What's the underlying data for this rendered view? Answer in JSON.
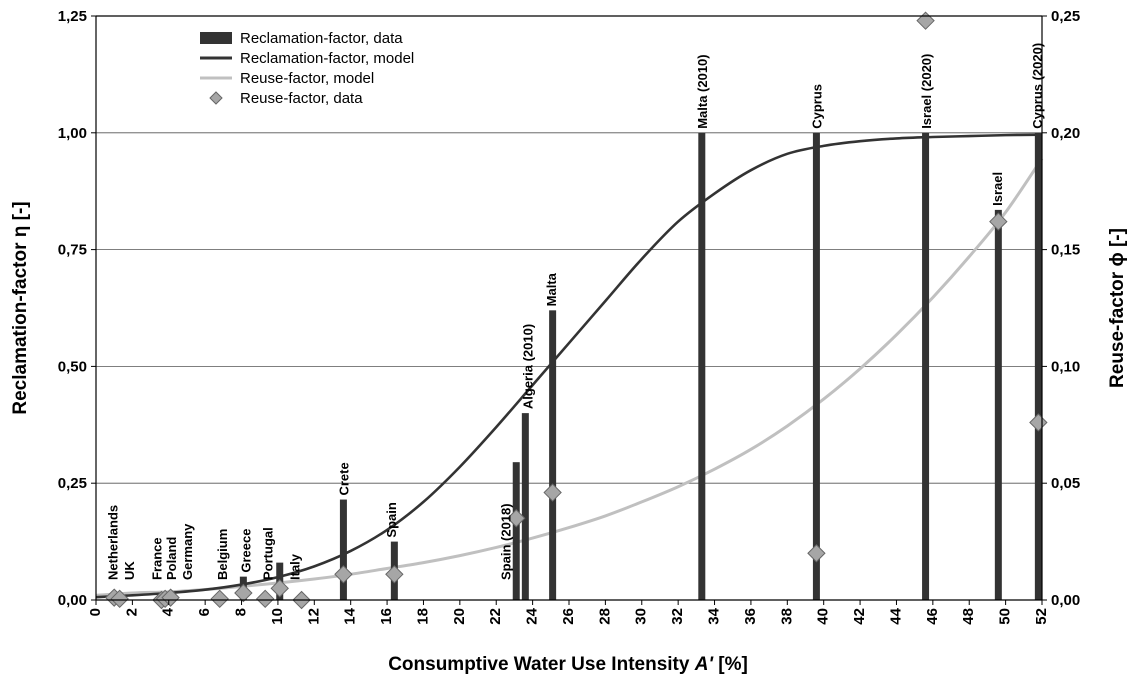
{
  "chart_data": {
    "type": "bar",
    "xlabel_prefix": "Consumptive Water Use Intensity ",
    "xlabel_var": "A'",
    "xlabel_suffix": " [%]",
    "ylabel_left": "Reclamation-factor η [-]",
    "ylabel_right": "Reuse-factor ϕ [-]",
    "xlim": [
      0,
      52
    ],
    "ylim_left": [
      0,
      1.25
    ],
    "ylim_right": [
      0,
      0.25
    ],
    "x_ticks": [
      "0",
      "2",
      "4",
      "6",
      "8",
      "10",
      "12",
      "14",
      "16",
      "18",
      "20",
      "22",
      "24",
      "26",
      "28",
      "30",
      "32",
      "34",
      "36",
      "38",
      "40",
      "42",
      "44",
      "46",
      "48",
      "50",
      "52"
    ],
    "x_tick_values": [
      0,
      2,
      4,
      6,
      8,
      10,
      12,
      14,
      16,
      18,
      20,
      22,
      24,
      26,
      28,
      30,
      32,
      34,
      36,
      38,
      40,
      42,
      44,
      46,
      48,
      50,
      52
    ],
    "y_ticks_left": [
      "0,00",
      "0,25",
      "0,50",
      "0,75",
      "1,00",
      "1,25"
    ],
    "y_tick_values_left": [
      0,
      0.25,
      0.5,
      0.75,
      1.0,
      1.25
    ],
    "y_ticks_right": [
      "0,00",
      "0,05",
      "0,10",
      "0,15",
      "0,20",
      "0,25"
    ],
    "y_tick_values_right": [
      0,
      0.05,
      0.1,
      0.15,
      0.2,
      0.25
    ],
    "grid": "horizontal",
    "legend_position": "top-left",
    "legend": [
      {
        "label": "Reclamation-factor, data",
        "symbol": "bar",
        "color": "#333333"
      },
      {
        "label": "Reclamation-factor, model",
        "symbol": "line",
        "color": "#333333"
      },
      {
        "label": "Reuse-factor, model",
        "symbol": "line",
        "color": "#c0c0c0"
      },
      {
        "label": "Reuse-factor, data",
        "symbol": "diamond",
        "color": "#a6a6a6"
      }
    ],
    "reclamation_data": [
      {
        "x": 8.1,
        "y": 0.05
      },
      {
        "x": 10.1,
        "y": 0.08
      },
      {
        "x": 13.6,
        "y": 0.215
      },
      {
        "x": 16.4,
        "y": 0.125
      },
      {
        "x": 23.1,
        "y": 0.295
      },
      {
        "x": 23.6,
        "y": 0.4
      },
      {
        "x": 25.1,
        "y": 0.62
      },
      {
        "x": 33.3,
        "y": 1.0
      },
      {
        "x": 39.6,
        "y": 1.0
      },
      {
        "x": 45.6,
        "y": 1.0
      },
      {
        "x": 49.6,
        "y": 0.835
      },
      {
        "x": 51.8,
        "y": 1.0
      }
    ],
    "reuse_data": [
      {
        "x": 1.0,
        "y": 0.001
      },
      {
        "x": 1.3,
        "y": 0.0005
      },
      {
        "x": 3.6,
        "y": 0.0
      },
      {
        "x": 3.8,
        "y": 0.0005
      },
      {
        "x": 4.1,
        "y": 0.001
      },
      {
        "x": 6.8,
        "y": 0.0005
      },
      {
        "x": 8.1,
        "y": 0.003
      },
      {
        "x": 9.3,
        "y": 0.0005
      },
      {
        "x": 10.1,
        "y": 0.005
      },
      {
        "x": 11.3,
        "y": 0.0
      },
      {
        "x": 13.6,
        "y": 0.011
      },
      {
        "x": 16.4,
        "y": 0.011
      },
      {
        "x": 23.1,
        "y": 0.035
      },
      {
        "x": 25.1,
        "y": 0.046
      },
      {
        "x": 39.6,
        "y": 0.02
      },
      {
        "x": 45.6,
        "y": 0.248
      },
      {
        "x": 49.6,
        "y": 0.162
      },
      {
        "x": 51.8,
        "y": 0.076
      }
    ],
    "reclamation_model": {
      "x": [
        0,
        2,
        4,
        6,
        8,
        10,
        12,
        14,
        16,
        18,
        20,
        22,
        24,
        26,
        28,
        30,
        32,
        34,
        36,
        38,
        40,
        42,
        44,
        46,
        48,
        50,
        52
      ],
      "y": [
        0.006,
        0.01,
        0.015,
        0.022,
        0.033,
        0.049,
        0.072,
        0.105,
        0.15,
        0.21,
        0.285,
        0.37,
        0.46,
        0.55,
        0.64,
        0.73,
        0.81,
        0.87,
        0.92,
        0.955,
        0.972,
        0.982,
        0.988,
        0.991,
        0.993,
        0.995,
        0.996
      ]
    },
    "reuse_model": {
      "x": [
        0,
        2,
        4,
        6,
        8,
        10,
        12,
        14,
        16,
        18,
        20,
        22,
        24,
        26,
        28,
        30,
        32,
        34,
        36,
        38,
        40,
        42,
        44,
        46,
        48,
        50,
        52
      ],
      "y": [
        0.002,
        0.003,
        0.0035,
        0.0045,
        0.0058,
        0.0073,
        0.009,
        0.011,
        0.0135,
        0.016,
        0.019,
        0.0225,
        0.0265,
        0.031,
        0.036,
        0.042,
        0.0485,
        0.056,
        0.0645,
        0.0745,
        0.086,
        0.099,
        0.1135,
        0.1295,
        0.147,
        0.166,
        0.189
      ]
    },
    "country_labels": [
      {
        "text": "Netherlands",
        "x": 1.0
      },
      {
        "text": "UK",
        "x": 1.9
      },
      {
        "text": "France",
        "x": 3.4
      },
      {
        "text": "Poland",
        "x": 4.2
      },
      {
        "text": "Germany",
        "x": 5.1
      },
      {
        "text": "Belgium",
        "x": 7.0
      },
      {
        "text": "Greece",
        "x": 8.3
      },
      {
        "text": "Portugal",
        "x": 9.5
      },
      {
        "text": "Italy",
        "x": 11.0
      },
      {
        "text": "Crete",
        "x": 13.7
      },
      {
        "text": "Spain",
        "x": 16.3
      },
      {
        "text": "Spain (2018)",
        "x": 22.6
      },
      {
        "text": "Algeria (2010)",
        "x": 23.8
      },
      {
        "text": "Malta",
        "x": 25.1
      },
      {
        "text": "Malta (2010)",
        "x": 33.4
      },
      {
        "text": "Cyprus",
        "x": 39.7
      },
      {
        "text": "Israel (2020)",
        "x": 45.7
      },
      {
        "text": "Israel",
        "x": 49.6
      },
      {
        "text": "Cyprus (2020)",
        "x": 51.8
      }
    ]
  }
}
